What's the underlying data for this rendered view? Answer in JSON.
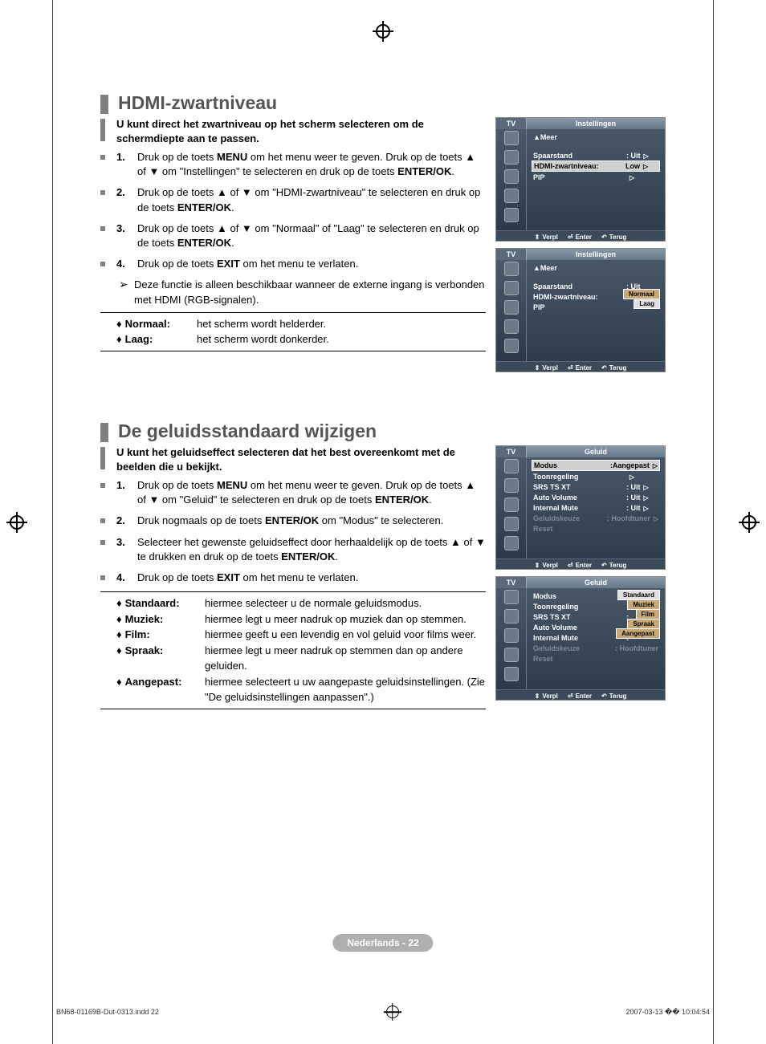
{
  "page": {
    "badge": "Nederlands - 22",
    "footer_left": "BN68-01169B-Dut-0313.indd   22",
    "footer_right": "2007-03-13   �� 10:04:54"
  },
  "section1": {
    "title": "HDMI-zwartniveau",
    "intro": "U kunt direct het zwartniveau op het scherm selecteren om de schermdiepte aan te passen.",
    "steps": [
      "Druk op de toets MENU om het menu weer te geven. Druk op de toets ▲ of ▼ om \"Instellingen\" te selecteren en druk op de toets ENTER/OK.",
      "Druk op de toets ▲ of ▼ om \"HDMI-zwartniveau\" te selecteren en druk op de toets ENTER/OK.",
      "Druk op de toets ▲ of ▼ om \"Normaal\" of \"Laag\" te selecteren en druk op de toets ENTER/OK.",
      "Druk op de toets EXIT om het menu te verlaten."
    ],
    "note": "Deze functie is alleen beschikbaar wanneer de externe ingang is verbonden met HDMI (RGB-signalen).",
    "defs": [
      {
        "label": "Normaal:",
        "value": "het scherm wordt helderder."
      },
      {
        "label": "Laag:",
        "value": "het scherm wordt donkerder."
      }
    ],
    "osd1": {
      "tv": "TV",
      "title": "Instellingen",
      "more": "▲Meer",
      "rows": [
        {
          "l": "Spaarstand",
          "r": ": Uit",
          "arw": "▷"
        },
        {
          "l": "HDMI-zwartniveau:",
          "r": "Low",
          "arw": "▷",
          "hl": true
        },
        {
          "l": "PIP",
          "r": "",
          "arw": "▷"
        }
      ],
      "footer": {
        "move": "Verpl",
        "enter": "Enter",
        "return": "Terug"
      }
    },
    "osd2": {
      "tv": "TV",
      "title": "Instellingen",
      "more": "▲Meer",
      "rows": [
        {
          "l": "Spaarstand",
          "r": ": Uit"
        },
        {
          "l": "HDMI-zwartniveau:",
          "r": ""
        },
        {
          "l": "PIP",
          "r": ""
        }
      ],
      "popup": [
        {
          "t": "Normaal",
          "sel": false
        },
        {
          "t": "Laag",
          "sel": true
        }
      ],
      "footer": {
        "move": "Verpl",
        "enter": "Enter",
        "return": "Terug"
      }
    }
  },
  "section2": {
    "title": "De geluidsstandaard wijzigen",
    "intro": "U kunt het geluidseffect selecteren dat het best overeenkomt met de beelden die u bekijkt.",
    "steps": [
      "Druk op de toets MENU om het menu weer te geven. Druk op de toets ▲ of ▼ om \"Geluid\" te selecteren en druk op de toets ENTER/OK.",
      "Druk nogmaals op de toets ENTER/OK om \"Modus\" te selecteren.",
      "Selecteer het gewenste geluidseffect door herhaaldelijk op de toets ▲ of ▼ te drukken en druk op de toets ENTER/OK.",
      "Druk op de toets EXIT om het menu te verlaten."
    ],
    "defs": [
      {
        "label": "Standaard:",
        "value": "hiermee selecteer u de normale geluidsmodus."
      },
      {
        "label": "Muziek:",
        "value": "hiermee legt u meer nadruk op muziek dan op stemmen."
      },
      {
        "label": "Film:",
        "value": "hiermee geeft u een levendig en vol geluid voor films weer."
      },
      {
        "label": "Spraak:",
        "value": "hiermee legt u meer nadruk op stemmen dan op andere geluiden."
      },
      {
        "label": "Aangepast:",
        "value": "hiermee selecteert u uw aangepaste geluidsinstellingen. (Zie \"De geluidsinstellingen aanpassen\".)"
      }
    ],
    "osd1": {
      "tv": "TV",
      "title": "Geluid",
      "rows": [
        {
          "l": "Modus",
          "r": ":Aangepast",
          "arw": "▷",
          "hl": true
        },
        {
          "l": "Toonregeling",
          "r": "",
          "arw": "▷"
        },
        {
          "l": "SRS TS XT",
          "r": ": Uit",
          "arw": "▷"
        },
        {
          "l": "Auto Volume",
          "r": ": Uit",
          "arw": "▷"
        },
        {
          "l": "Internal Mute",
          "r": ": Uit",
          "arw": "▷"
        },
        {
          "l": "Geluidskeuze",
          "r": ": Hoofdtuner",
          "arw": "▷",
          "dim": true
        },
        {
          "l": "Reset",
          "r": "",
          "dim": true
        }
      ],
      "footer": {
        "move": "Verpl",
        "enter": "Enter",
        "return": "Terug"
      }
    },
    "osd2": {
      "tv": "TV",
      "title": "Geluid",
      "rows": [
        {
          "l": "Modus",
          "r": ":"
        },
        {
          "l": "Toonregeling",
          "r": ""
        },
        {
          "l": "SRS TS XT",
          "r": ":"
        },
        {
          "l": "Auto Volume",
          "r": ":"
        },
        {
          "l": "Internal Mute",
          "r": ":"
        },
        {
          "l": "Geluidskeuze",
          "r": ": Hoofdtuner",
          "dim": true
        },
        {
          "l": "Reset",
          "r": "",
          "dim": true
        }
      ],
      "popup": [
        {
          "t": "Standaard",
          "sel": true
        },
        {
          "t": "Muziek"
        },
        {
          "t": "Film"
        },
        {
          "t": "Spraak"
        },
        {
          "t": "Aangepast"
        }
      ],
      "footer": {
        "move": "Verpl",
        "enter": "Enter",
        "return": "Terug"
      }
    }
  }
}
